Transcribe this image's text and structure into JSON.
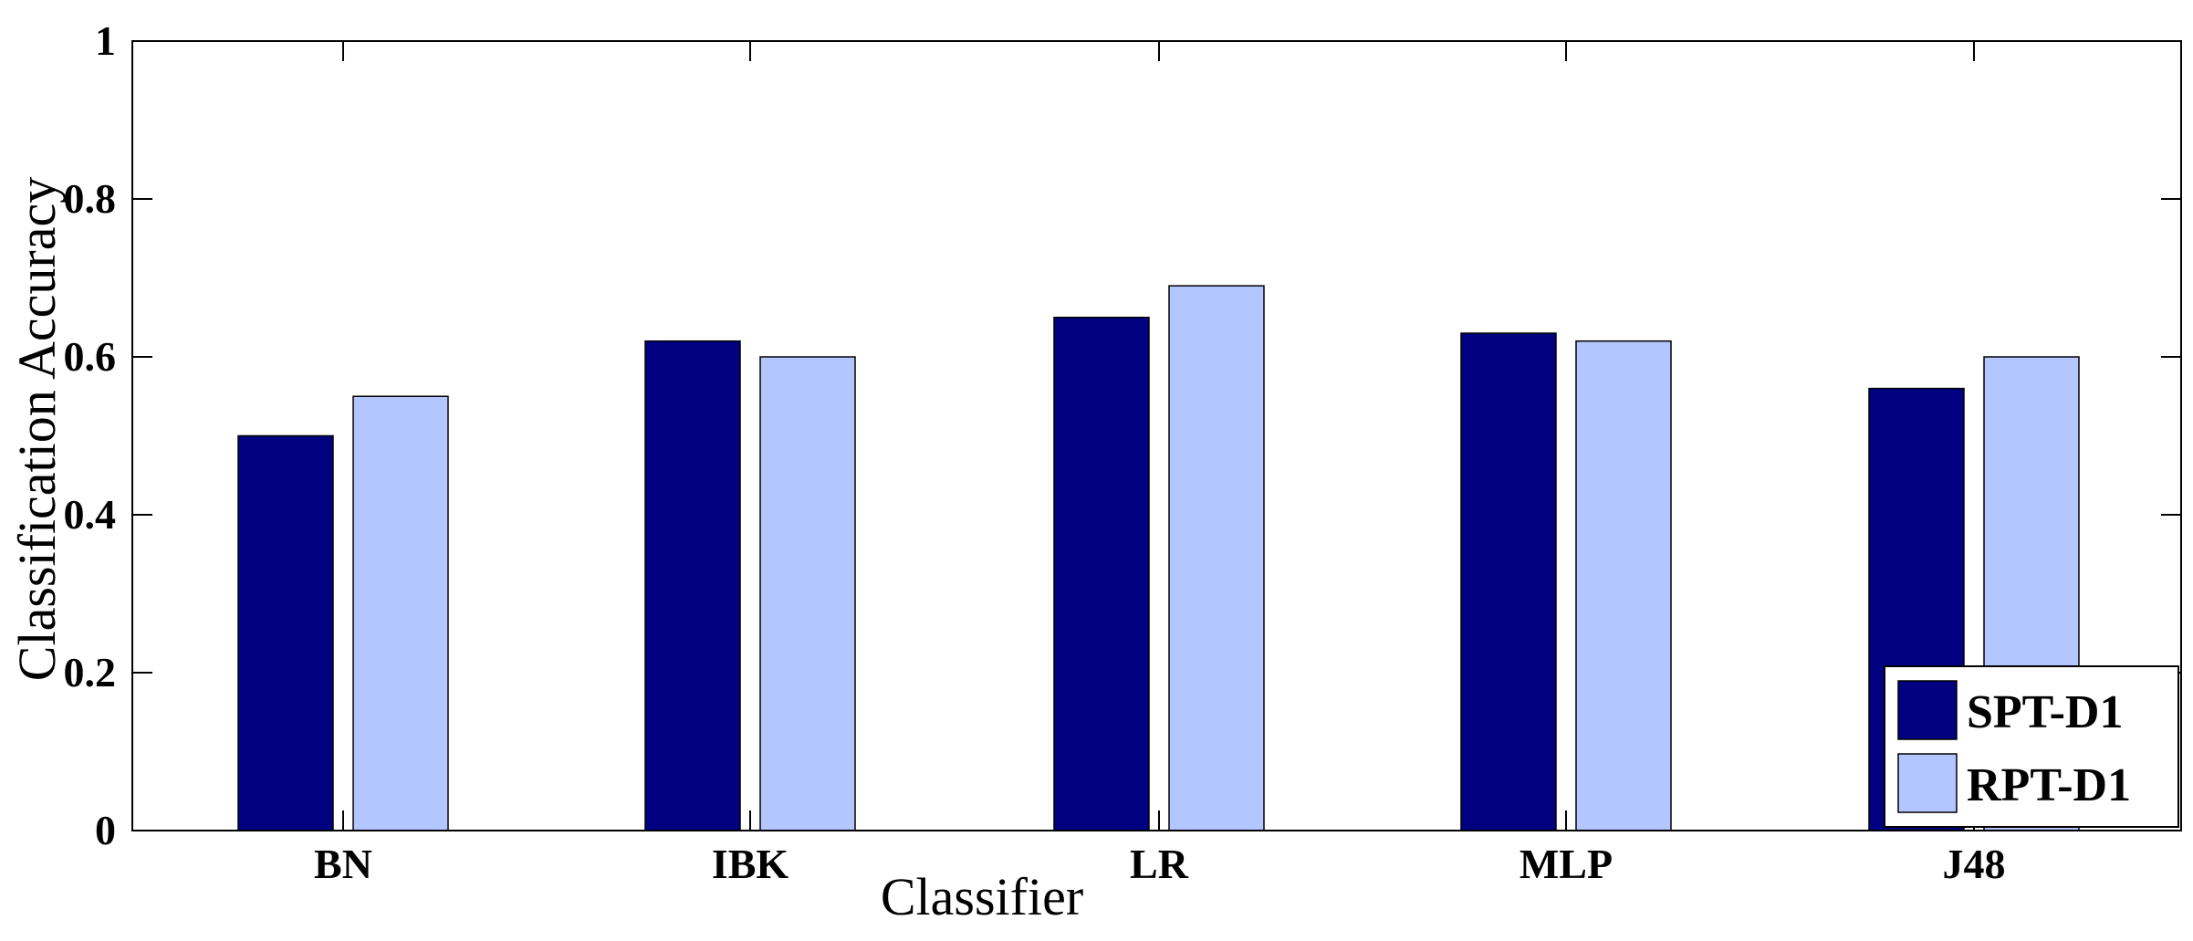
{
  "chart_data": {
    "type": "bar",
    "title": "",
    "xlabel": "Classifier",
    "ylabel": "Classification Accuracy",
    "categories": [
      "BN",
      "IBK",
      "LR",
      "MLP",
      "J48"
    ],
    "series": [
      {
        "name": "SPT-D1",
        "color": "#000080",
        "values": [
          0.5,
          0.62,
          0.65,
          0.63,
          0.56
        ]
      },
      {
        "name": "RPT-D1",
        "color": "#b3c6ff",
        "values": [
          0.55,
          0.6,
          0.69,
          0.62,
          0.6
        ]
      }
    ],
    "ylim": [
      0,
      1
    ],
    "yticks": [
      {
        "value": 0,
        "label": "0"
      },
      {
        "value": 0.2,
        "label": "0.2"
      },
      {
        "value": 0.4,
        "label": "0.4"
      },
      {
        "value": 0.6,
        "label": "0.6"
      },
      {
        "value": 0.8,
        "label": "0.8"
      },
      {
        "value": 1,
        "label": "1"
      }
    ],
    "grid": false,
    "legend_position": "bottom-right"
  }
}
